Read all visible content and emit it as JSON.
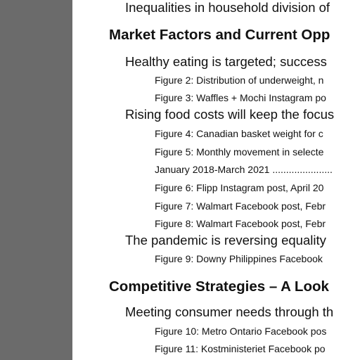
{
  "toc": {
    "lines": [
      {
        "level": 2,
        "text": "Inequalities in household division of"
      },
      {
        "level": 1,
        "text": "Market Factors and Current Opp"
      },
      {
        "level": 2,
        "text": "Healthy eating is targeted; success"
      },
      {
        "level": 3,
        "text": "Figure 2: Distribution of underweight, n"
      },
      {
        "level": 3,
        "text": "Figure 3: Waffles + Mochi Instagram po"
      },
      {
        "level": 2,
        "text": "Rising food costs will keep the focus"
      },
      {
        "level": 3,
        "text": "Figure 4: Canadian basket weight for c"
      },
      {
        "level": 3,
        "text": "Figure 5: Monthly movement in selecte"
      },
      {
        "level": 3,
        "text": "January 2018-March 2021 ......................"
      },
      {
        "level": 3,
        "text": "Figure 6: Flipp Instagram post, April 20"
      },
      {
        "level": 3,
        "text": "Figure 7: Walmart Facebook post, Febr"
      },
      {
        "level": 3,
        "text": "Figure 8: Walmart Facebook post, Febr"
      },
      {
        "level": 2,
        "text": "The pandemic is reversing equality"
      },
      {
        "level": 3,
        "text": "Figure 9: Downy Philippines Facebook"
      },
      {
        "level": 1,
        "text": "Competitive Strategies – A Look"
      },
      {
        "level": 2,
        "text": "Meeting consumer needs through th"
      },
      {
        "level": 3,
        "text": "Figure 10: Metro Ontario Facebook pos"
      },
      {
        "level": 3,
        "text": "Figure 11: Kostministeriet Facebook po"
      }
    ]
  }
}
